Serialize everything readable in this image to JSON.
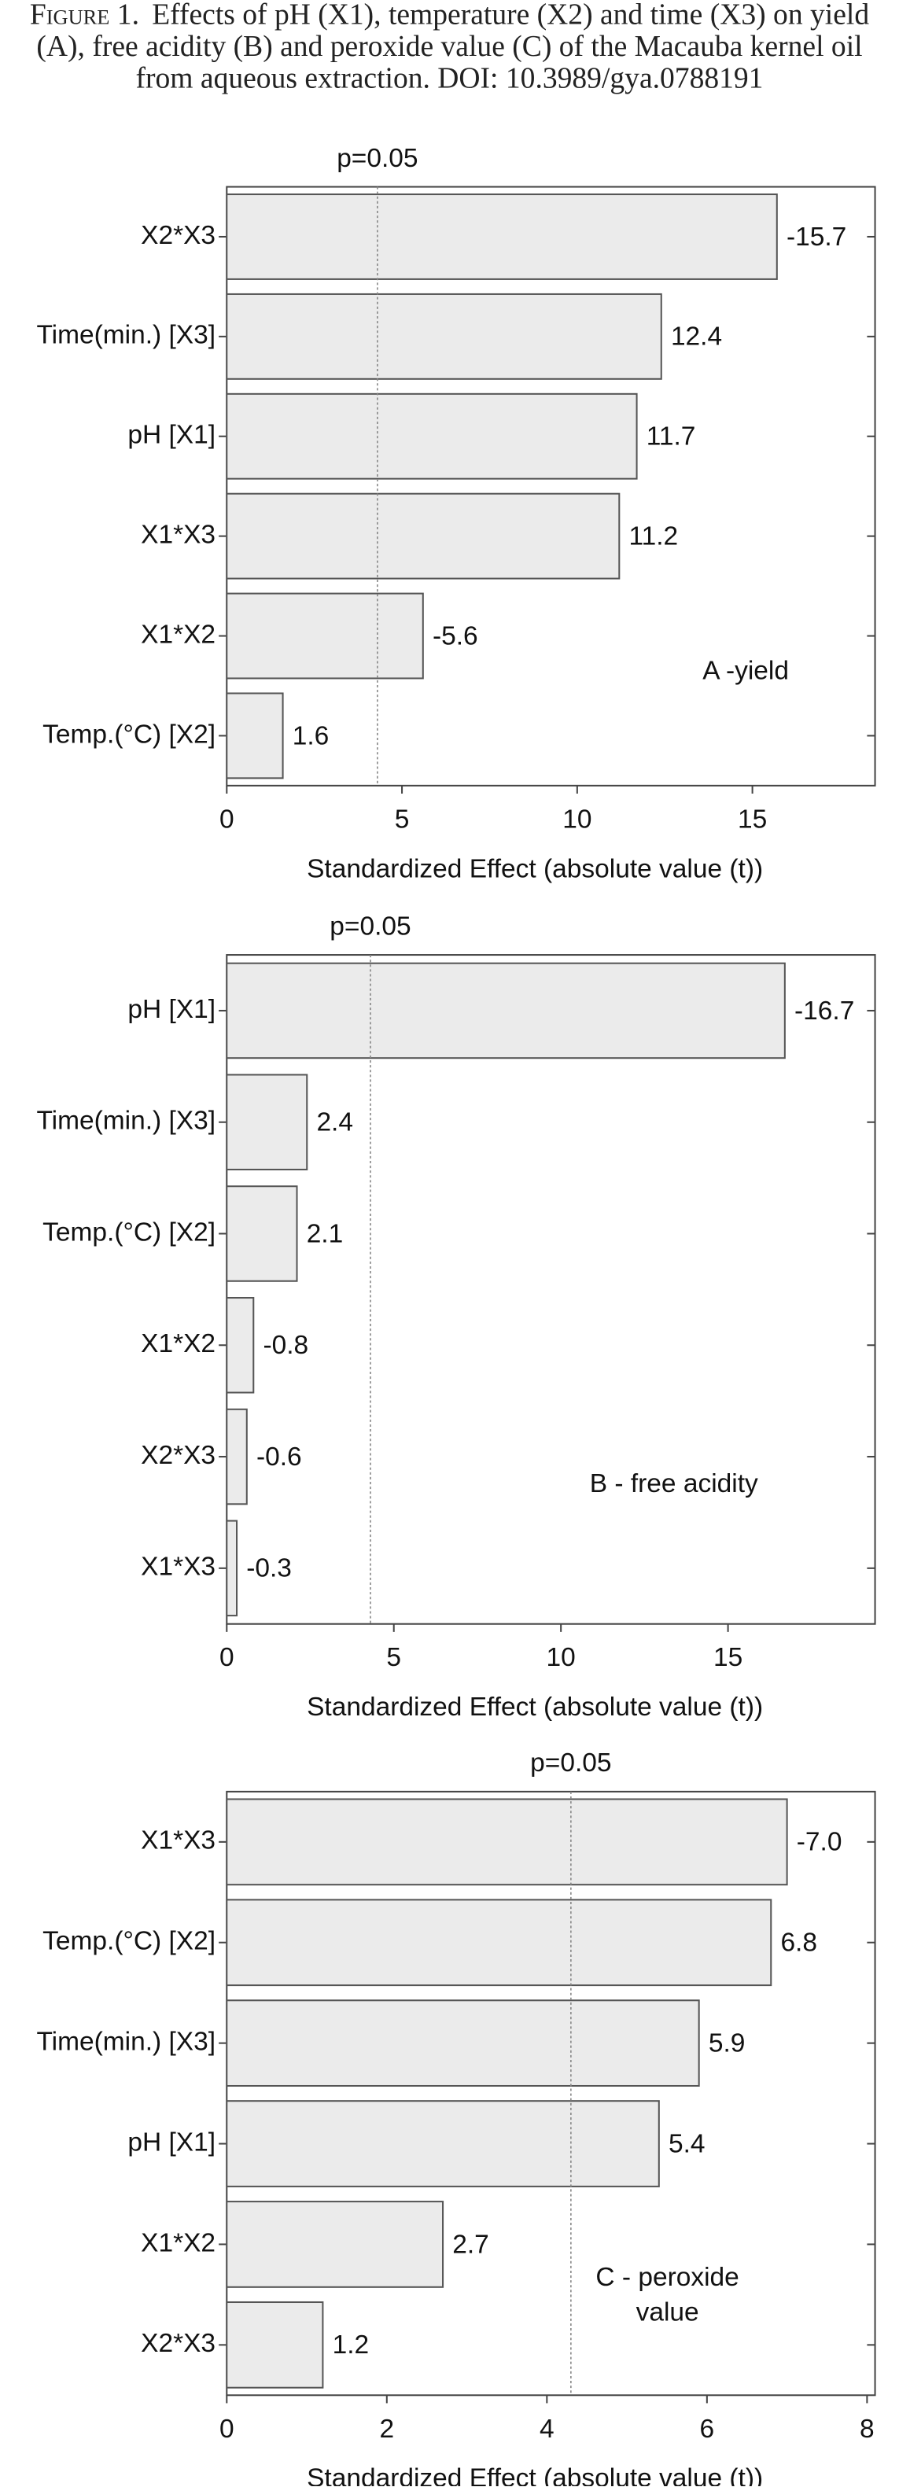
{
  "figure_label": "Figure 1.",
  "caption": "Effects of pH (X1), temperature (X2) and time (X3) on yield (A), free acidity (B) and peroxide value (C) of the Macauba kernel oil from aqueous extraction. DOI: 10.3989/gya.0788191",
  "chart_data": [
    {
      "type": "bar",
      "orientation": "horizontal",
      "color": "#ebebeb",
      "xlabel": "Standardized Effect (absolute value (t))",
      "annotation": [
        "A -yield"
      ],
      "reference": {
        "label": "p=0.05",
        "value": 4.3
      },
      "categories": [
        "X2*X3",
        "Time(min.) [X3]",
        "pH [X1]",
        "X1*X3",
        "X1*X2",
        "Temp.(°C) [X2]"
      ],
      "values": [
        15.7,
        12.4,
        11.7,
        11.2,
        5.6,
        1.6
      ],
      "value_labels": [
        "-15.7",
        "12.4",
        "11.7",
        "11.2",
        "-5.6",
        "1.6"
      ],
      "xlim": [
        0,
        18.5
      ],
      "xticks": [
        0,
        5,
        10,
        15
      ]
    },
    {
      "type": "bar",
      "orientation": "horizontal",
      "color": "#ebebeb",
      "xlabel": "Standardized Effect (absolute value (t))",
      "annotation": [
        "B - free acidity"
      ],
      "reference": {
        "label": "p=0.05",
        "value": 4.3
      },
      "categories": [
        "pH [X1]",
        "Time(min.) [X3]",
        "Temp.(°C) [X2]",
        "X1*X2",
        "X2*X3",
        "X1*X3"
      ],
      "values": [
        16.7,
        2.4,
        2.1,
        0.8,
        0.6,
        0.3
      ],
      "value_labels": [
        "-16.7",
        "2.4",
        "2.1",
        "-0.8",
        "-0.6",
        "-0.3"
      ],
      "xlim": [
        0,
        19.4
      ],
      "xticks": [
        0,
        5,
        10,
        15
      ]
    },
    {
      "type": "bar",
      "orientation": "horizontal",
      "color": "#ebebeb",
      "xlabel": "Standardized Effect (absolute value (t))",
      "annotation": [
        "C - peroxide",
        "value"
      ],
      "reference": {
        "label": "p=0.05",
        "value": 4.3
      },
      "categories": [
        "X1*X3",
        "Temp.(°C) [X2]",
        "Time(min.) [X3]",
        "pH [X1]",
        "X1*X2",
        "X2*X3"
      ],
      "values": [
        7.0,
        6.8,
        5.9,
        5.4,
        2.7,
        1.2
      ],
      "value_labels": [
        "-7.0",
        "6.8",
        "5.9",
        "5.4",
        "2.7",
        "1.2"
      ],
      "xlim": [
        0,
        8.1
      ],
      "xticks": [
        0,
        2,
        4,
        6,
        8
      ]
    }
  ]
}
